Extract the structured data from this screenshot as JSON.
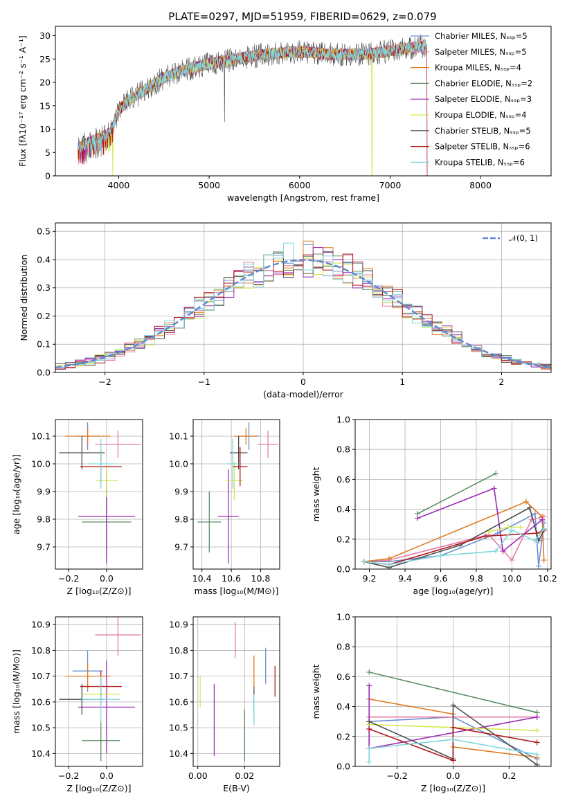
{
  "title": "PLATE=0297, MJD=51959, FIBERID=0629, z=0.079",
  "colors": [
    "#6a8fd2",
    "#e77ba6",
    "#e07b21",
    "#5b8c65",
    "#9c2ab5",
    "#d4e84b",
    "#4d4d4d",
    "#b0191b",
    "#7fd7dc"
  ],
  "chart_data": [
    {
      "type": "line",
      "id": "spectrum",
      "title": "PLATE=0297, MJD=51959, FIBERID=0629, z=0.079",
      "xlabel": "wavelength [Angstrom, rest frame]",
      "ylabel": "Flux [fλ10⁻¹⁷ erg cm⁻² s⁻¹ A⁻¹]",
      "xlim": [
        3300,
        8780
      ],
      "ylim": [
        0,
        32
      ],
      "xticks": [
        "4000",
        "5000",
        "6000",
        "7000",
        "8000"
      ],
      "yticks": [
        "0",
        "5",
        "10",
        "15",
        "20",
        "25",
        "30"
      ],
      "legend_loc": "right",
      "series": [
        {
          "name": "Chabrier MILES, Nₛₛₚ=5"
        },
        {
          "name": "Salpeter MILES, Nₛₛₚ=5"
        },
        {
          "name": "Kroupa MILES, Nₛₛₚ=4"
        },
        {
          "name": "Chabrier ELODIE, Nₛₛₚ=2"
        },
        {
          "name": "Salpeter ELODIE, Nₛₛₚ=3"
        },
        {
          "name": "Kroupa ELODIE, Nₛₛₚ=4"
        },
        {
          "name": "Chabrier STELIB, Nₛₛₚ=5"
        },
        {
          "name": "Salpeter STELIB, Nₛₛₚ=6"
        },
        {
          "name": "Kroupa STELIB, Nₛₛₚ=6"
        }
      ],
      "continuum": {
        "x": [
          3550,
          3700,
          3900,
          4000,
          4100,
          4300,
          4500,
          4700,
          5000,
          5300,
          5600,
          5900,
          6100,
          6300,
          6500,
          6700,
          6900,
          7100,
          7300,
          7400
        ],
        "y": [
          6,
          7.5,
          9,
          14,
          16,
          18.5,
          21,
          22.5,
          24,
          25,
          26,
          26.5,
          26.5,
          26,
          26,
          26,
          26.5,
          27,
          27.5,
          28
        ]
      },
      "dips": [
        {
          "x": 3935,
          "y": 0
        },
        {
          "x": 5170,
          "y": 11.5
        },
        {
          "x": 6800,
          "y": 0
        },
        {
          "x": 7410,
          "y": 0
        }
      ],
      "grid": false
    },
    {
      "type": "bar",
      "id": "residuals",
      "xlabel": "(data-model)/error",
      "ylabel": "Normed distribution",
      "xlim": [
        -2.5,
        2.5
      ],
      "ylim": [
        0,
        0.53
      ],
      "xticks": [
        "−2",
        "−1",
        "0",
        "1",
        "2"
      ],
      "yticks": [
        "0.0",
        "0.1",
        "0.2",
        "0.3",
        "0.4",
        "0.5"
      ],
      "bin_width": 0.1,
      "bin_start": -2.5,
      "reference": {
        "name": "𝒩(0, 1)",
        "style": "dashed",
        "color": "#5b8ad5"
      },
      "grid": true
    },
    {
      "type": "scatter",
      "id": "age-vs-z",
      "xlabel": "Z [log₁₀(Z/Z⊙)]",
      "ylabel": "age  [log₁₀(age/yr)]",
      "xlim": [
        -0.27,
        0.19
      ],
      "ylim": [
        9.62,
        10.16
      ],
      "xticks": [
        "−0.2",
        "0.0"
      ],
      "yticks": [
        "9.7",
        "9.8",
        "9.9",
        "10.0",
        "10.1"
      ],
      "points": [
        {
          "x": -0.1,
          "y": 10.1,
          "xerr": 0.07,
          "yerr": 0.05
        },
        {
          "x": 0.06,
          "y": 10.07,
          "xerr": 0.12,
          "yerr": 0.05
        },
        {
          "x": -0.1,
          "y": 10.1,
          "xerr": 0.12,
          "yerr": 0.03
        },
        {
          "x": 0.0,
          "y": 9.79,
          "xerr": 0.13,
          "yerr": 0.12
        },
        {
          "x": 0.0,
          "y": 9.81,
          "xerr": 0.15,
          "yerr": 0.17
        },
        {
          "x": 0.0,
          "y": 9.94,
          "xerr": 0.06,
          "yerr": 0.06
        },
        {
          "x": -0.13,
          "y": 10.04,
          "xerr": 0.12,
          "yerr": 0.06
        },
        {
          "x": -0.03,
          "y": 9.99,
          "xerr": 0.11,
          "yerr": 0.06
        },
        {
          "x": -0.03,
          "y": 10.0,
          "xerr": 0.07,
          "yerr": 0.09
        }
      ],
      "grid": true
    },
    {
      "type": "scatter",
      "id": "age-vs-mass",
      "xlabel": "mass [log₁₀(M/M⊙)]",
      "ylabel": "",
      "xlim": [
        10.34,
        10.93
      ],
      "ylim": [
        9.62,
        10.16
      ],
      "xticks": [
        "10.4",
        "10.6",
        "10.8"
      ],
      "yticks": [
        "9.7",
        "9.8",
        "9.9",
        "10.0",
        "10.1"
      ],
      "points": [
        {
          "x": 10.72,
          "y": 10.1,
          "xerr": 0.07,
          "yerr": 0.05
        },
        {
          "x": 10.85,
          "y": 10.07,
          "xerr": 0.07,
          "yerr": 0.05
        },
        {
          "x": 10.7,
          "y": 10.1,
          "xerr": 0.08,
          "yerr": 0.03
        },
        {
          "x": 10.45,
          "y": 9.79,
          "xerr": 0.08,
          "yerr": 0.11
        },
        {
          "x": 10.58,
          "y": 9.81,
          "xerr": 0.07,
          "yerr": 0.17
        },
        {
          "x": 10.62,
          "y": 9.94,
          "xerr": 0.06,
          "yerr": 0.07
        },
        {
          "x": 10.65,
          "y": 10.04,
          "xerr": 0.06,
          "yerr": 0.06
        },
        {
          "x": 10.66,
          "y": 9.99,
          "xerr": 0.05,
          "yerr": 0.07
        },
        {
          "x": 10.61,
          "y": 10.0,
          "xerr": 0.04,
          "yerr": 0.09
        }
      ],
      "grid": true
    },
    {
      "type": "line",
      "id": "weight-vs-age",
      "xlabel": "age  [log₁₀(age/yr)]",
      "ylabel": "mass weight",
      "xlim": [
        9.12,
        10.22
      ],
      "ylim": [
        0,
        1
      ],
      "xticks": [
        "9.2",
        "9.4",
        "9.6",
        "9.8",
        "10.0",
        "10.2"
      ],
      "yticks": [
        "0.0",
        "0.2",
        "0.4",
        "0.6",
        "0.8",
        "1.0"
      ],
      "series": [
        {
          "x": [
            9.17,
            9.31,
            9.6,
            9.92,
            10.13,
            10.15,
            10.18
          ],
          "y": [
            0.05,
            0.05,
            0.09,
            0.24,
            0.37,
            0.02,
            0.31
          ]
        },
        {
          "x": [
            9.17,
            9.31,
            9.87,
            10.0,
            10.11,
            10.18
          ],
          "y": [
            0.05,
            0.06,
            0.23,
            0.06,
            0.33,
            0.35
          ]
        },
        {
          "x": [
            9.17,
            9.31,
            10.08,
            10.17,
            10.18
          ],
          "y": [
            0.05,
            0.07,
            0.45,
            0.35,
            0.06
          ]
        },
        {
          "x": [
            9.47,
            9.91
          ],
          "y": [
            0.37,
            0.64
          ]
        },
        {
          "x": [
            9.47,
            9.9,
            9.95,
            10.17
          ],
          "y": [
            0.34,
            0.54,
            0.12,
            0.33
          ]
        },
        {
          "x": [
            9.87,
            9.98,
            10.05
          ],
          "y": [
            0.25,
            0.28,
            0.28
          ]
        },
        {
          "x": [
            9.17,
            9.31,
            9.71,
            10.1,
            10.15,
            10.18
          ],
          "y": [
            0.05,
            0.01,
            0.16,
            0.41,
            0.19,
            0.26
          ]
        },
        {
          "x": [
            9.17,
            9.31,
            9.85,
            10.14,
            10.18
          ],
          "y": [
            0.05,
            0.03,
            0.22,
            0.24,
            0.26
          ]
        },
        {
          "x": [
            9.17,
            9.31,
            9.6,
            9.91,
            10.0,
            10.13,
            10.18
          ],
          "y": [
            0.05,
            0.03,
            0.09,
            0.12,
            0.26,
            0.19,
            0.27
          ]
        }
      ],
      "grid": true
    },
    {
      "type": "scatter",
      "id": "mass-vs-z",
      "xlabel": "Z [log₁₀(Z/Z⊙)]",
      "ylabel": "mass [log₁₀(M/M⊙)]",
      "xlim": [
        -0.27,
        0.19
      ],
      "ylim": [
        10.35,
        10.93
      ],
      "xticks": [
        "−0.2",
        "0.0"
      ],
      "yticks": [
        "10.4",
        "10.5",
        "10.6",
        "10.7",
        "10.8",
        "10.9"
      ],
      "points": [
        {
          "x": -0.1,
          "y": 10.72,
          "xerr": 0.08,
          "yerr": 0.08
        },
        {
          "x": 0.06,
          "y": 10.86,
          "xerr": 0.12,
          "yerr": 0.08
        },
        {
          "x": -0.1,
          "y": 10.7,
          "xerr": 0.12,
          "yerr": 0.05
        },
        {
          "x": -0.03,
          "y": 10.45,
          "xerr": 0.1,
          "yerr": 0.08
        },
        {
          "x": 0.0,
          "y": 10.58,
          "xerr": 0.15,
          "yerr": 0.18
        },
        {
          "x": -0.03,
          "y": 10.63,
          "xerr": 0.1,
          "yerr": 0.05
        },
        {
          "x": -0.13,
          "y": 10.61,
          "xerr": 0.12,
          "yerr": 0.06
        },
        {
          "x": -0.03,
          "y": 10.66,
          "xerr": 0.11,
          "yerr": 0.06
        },
        {
          "x": -0.03,
          "y": 10.61,
          "xerr": 0.1,
          "yerr": 0.09
        }
      ],
      "grid": true
    },
    {
      "type": "scatter",
      "id": "mass-vs-ebv",
      "xlabel": "E(B-V)",
      "ylabel": "",
      "xlim": [
        -0.002,
        0.035
      ],
      "ylim": [
        10.35,
        10.93
      ],
      "xticks": [
        "0.00",
        "0.02"
      ],
      "yticks": [
        "10.4",
        "10.5",
        "10.6",
        "10.7",
        "10.8",
        "10.9"
      ],
      "points": [
        {
          "x": 0.029,
          "y": 10.74,
          "xerr": 0,
          "yerr": 0.07
        },
        {
          "x": 0.016,
          "y": 10.84,
          "xerr": 0,
          "yerr": 0.07
        },
        {
          "x": 0.024,
          "y": 10.72,
          "xerr": 0,
          "yerr": 0.06
        },
        {
          "x": 0.02,
          "y": 10.47,
          "xerr": 0,
          "yerr": 0.1
        },
        {
          "x": 0.007,
          "y": 10.53,
          "xerr": 0,
          "yerr": 0.14
        },
        {
          "x": 0.001,
          "y": 10.64,
          "xerr": 0,
          "yerr": 0.06
        },
        {
          "x": 0.024,
          "y": 10.6,
          "xerr": 0,
          "yerr": 0.06
        },
        {
          "x": 0.033,
          "y": 10.68,
          "xerr": 0,
          "yerr": 0.06
        },
        {
          "x": 0.024,
          "y": 10.57,
          "xerr": 0,
          "yerr": 0.06
        }
      ],
      "grid": true
    },
    {
      "type": "line",
      "id": "weight-vs-z",
      "xlabel": "Z [log₁₀(Z/Z⊙)]",
      "ylabel": "mass weight",
      "xlim": [
        -0.35,
        0.35
      ],
      "ylim": [
        0,
        1
      ],
      "xticks": [
        "−0.2",
        "0.0",
        "0.2"
      ],
      "yticks": [
        "0.0",
        "0.2",
        "0.4",
        "0.6",
        "0.8",
        "1.0"
      ],
      "series": [
        {
          "x": [
            -0.3,
            -0.3,
            0.0,
            0.3
          ],
          "y": [
            0.12,
            0.3,
            0.33,
            0.05
          ]
        },
        {
          "x": [
            -0.3,
            0.0,
            0.3
          ],
          "y": [
            0.33,
            0.33,
            0.33
          ]
        },
        {
          "x": [
            -0.3,
            0.0,
            0.0,
            0.3
          ],
          "y": [
            0.45,
            0.35,
            0.13,
            0.06
          ]
        },
        {
          "x": [
            -0.3,
            0.3
          ],
          "y": [
            0.63,
            0.36
          ]
        },
        {
          "x": [
            -0.3,
            -0.3,
            0.3
          ],
          "y": [
            0.54,
            0.12,
            0.33
          ]
        },
        {
          "x": [
            -0.3,
            0.3
          ],
          "y": [
            0.28,
            0.24
          ]
        },
        {
          "x": [
            -0.3,
            0.0,
            0.0,
            0.3
          ],
          "y": [
            0.3,
            0.05,
            0.41,
            0.01
          ]
        },
        {
          "x": [
            -0.3,
            0.0,
            0.0,
            0.3
          ],
          "y": [
            0.25,
            0.04,
            0.26,
            0.16
          ]
        },
        {
          "x": [
            -0.3,
            -0.3,
            0.0,
            0.3
          ],
          "y": [
            0.03,
            0.12,
            0.18,
            0.08
          ]
        }
      ],
      "grid": true
    }
  ]
}
